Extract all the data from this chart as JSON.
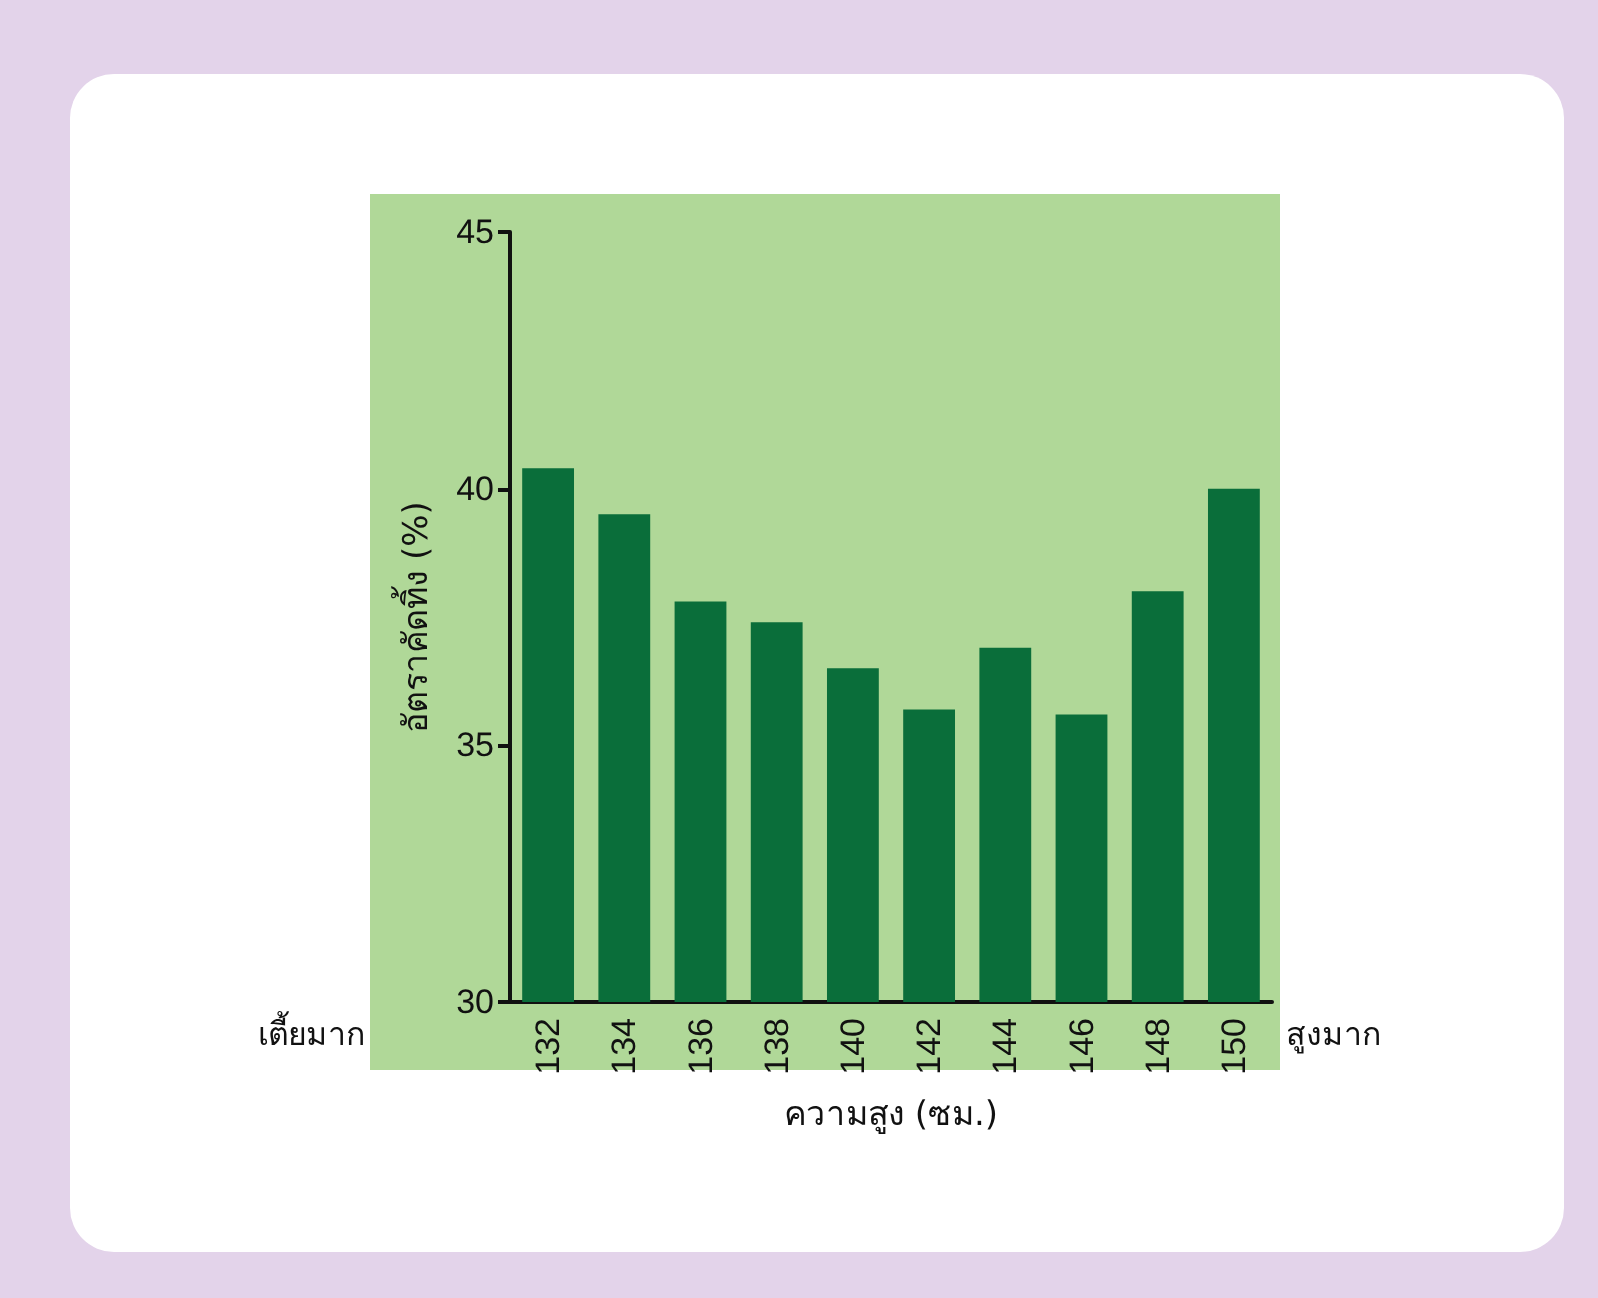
{
  "chart_data": {
    "type": "bar",
    "xlabel": "ความสูง (ซม.)",
    "ylabel": "อัตราคัดทิ้ง (%)",
    "categories": [
      "132",
      "134",
      "136",
      "138",
      "140",
      "142",
      "144",
      "146",
      "148",
      "150"
    ],
    "values": [
      40.4,
      39.5,
      37.8,
      37.4,
      36.5,
      35.7,
      36.9,
      35.6,
      38.0,
      40.0
    ],
    "color": "#0a6e3a",
    "ylim": [
      30,
      45
    ],
    "yticks": [
      30,
      35,
      40,
      45
    ],
    "grid": false,
    "annotations": [
      "เตี้ยมาก",
      "สูงมาก"
    ]
  }
}
